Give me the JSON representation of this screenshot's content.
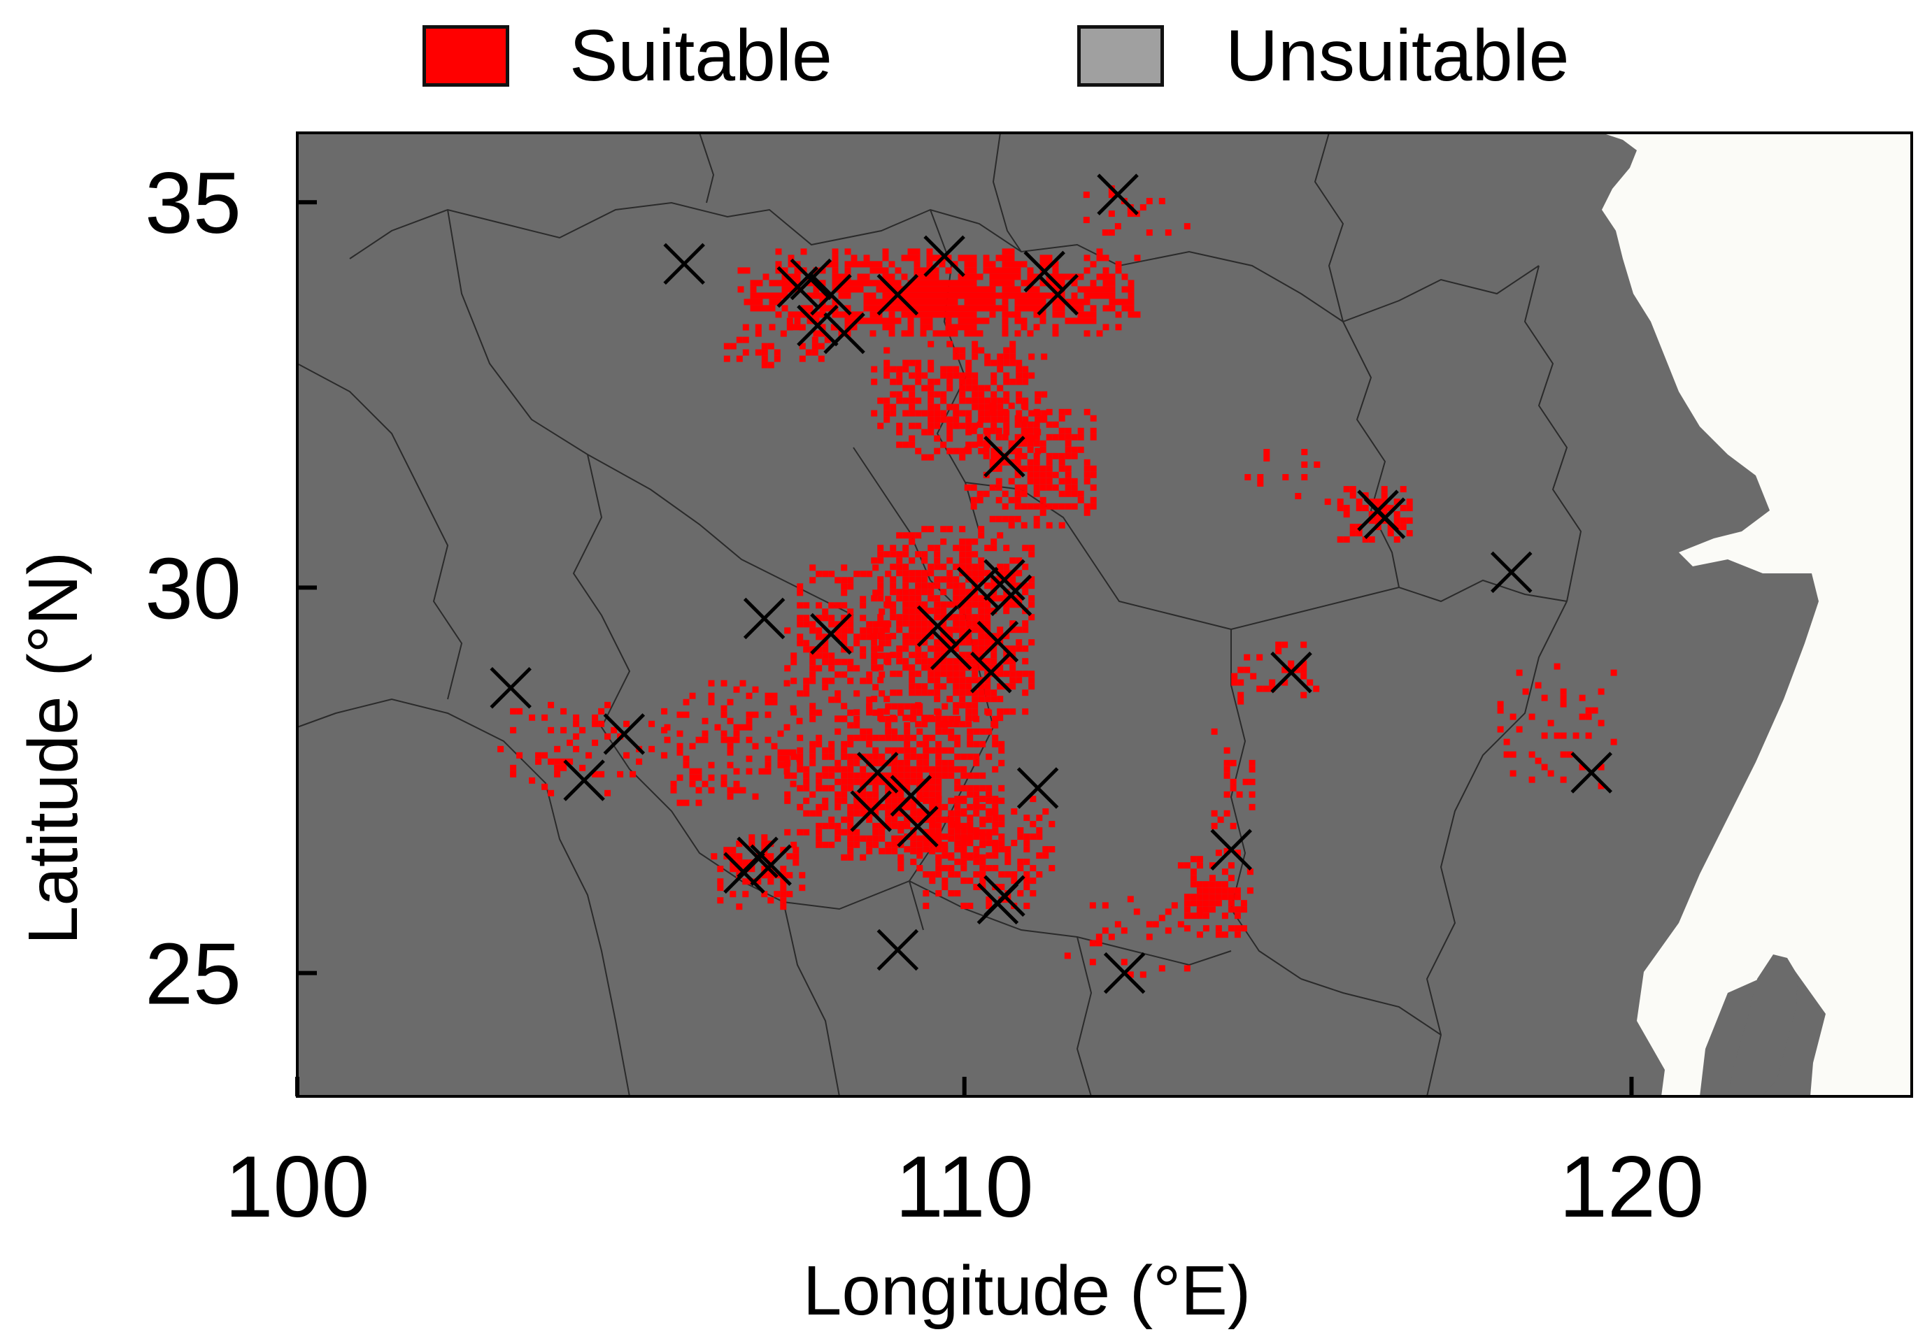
{
  "legend": {
    "items": [
      {
        "label": "Suitable",
        "color": "#ff0000"
      },
      {
        "label": "Unsuitable",
        "color": "#a0a0a0"
      }
    ]
  },
  "colors": {
    "land": "#6b6b6b",
    "sea": "#fbfbf7",
    "suitable": "#ff0000",
    "boundary": "#2a2a2a",
    "marker": "#000000"
  },
  "chart_data": {
    "type": "map",
    "xlabel": "Longitude (°E)",
    "ylabel": "Latitude (°N)",
    "xlim": [
      100,
      124.2
    ],
    "ylim": [
      23.4,
      35.9
    ],
    "xticks": [
      100,
      110,
      120
    ],
    "yticks": [
      25,
      30,
      35
    ],
    "occurrence_points": [
      [
        105.8,
        34.2
      ],
      [
        107.5,
        33.9
      ],
      [
        107.7,
        34.0
      ],
      [
        108.0,
        33.8
      ],
      [
        107.8,
        33.4
      ],
      [
        108.2,
        33.3
      ],
      [
        109.0,
        33.8
      ],
      [
        109.7,
        34.3
      ],
      [
        111.2,
        34.1
      ],
      [
        111.4,
        33.8
      ],
      [
        112.3,
        35.1
      ],
      [
        110.6,
        31.7
      ],
      [
        116.2,
        31.0
      ],
      [
        116.3,
        30.9
      ],
      [
        118.2,
        30.2
      ],
      [
        107.0,
        29.6
      ],
      [
        108.0,
        29.4
      ],
      [
        109.6,
        29.5
      ],
      [
        109.8,
        29.2
      ],
      [
        110.2,
        30.0
      ],
      [
        110.6,
        30.1
      ],
      [
        110.7,
        29.9
      ],
      [
        110.5,
        29.3
      ],
      [
        110.4,
        28.9
      ],
      [
        103.2,
        28.7
      ],
      [
        104.9,
        28.1
      ],
      [
        104.3,
        27.5
      ],
      [
        108.7,
        27.6
      ],
      [
        108.6,
        27.1
      ],
      [
        109.2,
        27.3
      ],
      [
        109.3,
        26.9
      ],
      [
        111.1,
        27.4
      ],
      [
        106.7,
        26.3
      ],
      [
        106.9,
        26.5
      ],
      [
        107.1,
        26.4
      ],
      [
        110.5,
        25.9
      ],
      [
        110.6,
        26.0
      ],
      [
        109.0,
        25.3
      ],
      [
        112.4,
        25.0
      ],
      [
        114.0,
        26.6
      ],
      [
        114.9,
        28.9
      ],
      [
        119.4,
        27.6
      ]
    ],
    "suitable_regions": [
      {
        "lon": [
          106.6,
          112.6
        ],
        "lat": [
          33.3,
          34.4
        ],
        "density": 0.9
      },
      {
        "lon": [
          106.3,
          108.0
        ],
        "lat": [
          32.9,
          33.5
        ],
        "density": 0.35
      },
      {
        "lon": [
          108.6,
          111.2
        ],
        "lat": [
          31.7,
          33.2
        ],
        "density": 0.7
      },
      {
        "lon": [
          110.0,
          111.9
        ],
        "lat": [
          30.8,
          32.4
        ],
        "density": 0.75
      },
      {
        "lon": [
          108.6,
          111.0
        ],
        "lat": [
          28.2,
          30.8
        ],
        "density": 0.85
      },
      {
        "lon": [
          107.3,
          108.9
        ],
        "lat": [
          28.3,
          30.3
        ],
        "density": 0.5
      },
      {
        "lon": [
          107.3,
          110.6
        ],
        "lat": [
          26.5,
          28.5
        ],
        "density": 0.8
      },
      {
        "lon": [
          109.0,
          111.3
        ],
        "lat": [
          25.9,
          27.3
        ],
        "density": 0.6
      },
      {
        "lon": [
          105.5,
          107.5
        ],
        "lat": [
          27.2,
          28.8
        ],
        "density": 0.35
      },
      {
        "lon": [
          103.0,
          105.5
        ],
        "lat": [
          27.3,
          28.6
        ],
        "density": 0.3
      },
      {
        "lon": [
          106.2,
          107.6
        ],
        "lat": [
          25.9,
          26.8
        ],
        "density": 0.5
      },
      {
        "lon": [
          113.2,
          114.3
        ],
        "lat": [
          25.5,
          26.6
        ],
        "density": 0.7
      },
      {
        "lon": [
          111.5,
          113.5
        ],
        "lat": [
          24.9,
          26.0
        ],
        "density": 0.2
      },
      {
        "lon": [
          115.4,
          116.7
        ],
        "lat": [
          30.6,
          31.4
        ],
        "density": 0.55
      },
      {
        "lon": [
          114.2,
          115.4
        ],
        "lat": [
          31.2,
          31.8
        ],
        "density": 0.2
      },
      {
        "lon": [
          114.0,
          115.3
        ],
        "lat": [
          28.5,
          29.3
        ],
        "density": 0.4
      },
      {
        "lon": [
          111.5,
          113.3
        ],
        "lat": [
          34.6,
          35.3
        ],
        "density": 0.15
      },
      {
        "lon": [
          117.8,
          119.8
        ],
        "lat": [
          27.4,
          29.1
        ],
        "density": 0.15
      },
      {
        "lon": [
          113.7,
          114.4
        ],
        "lat": [
          26.6,
          28.5
        ],
        "density": 0.15
      }
    ]
  }
}
